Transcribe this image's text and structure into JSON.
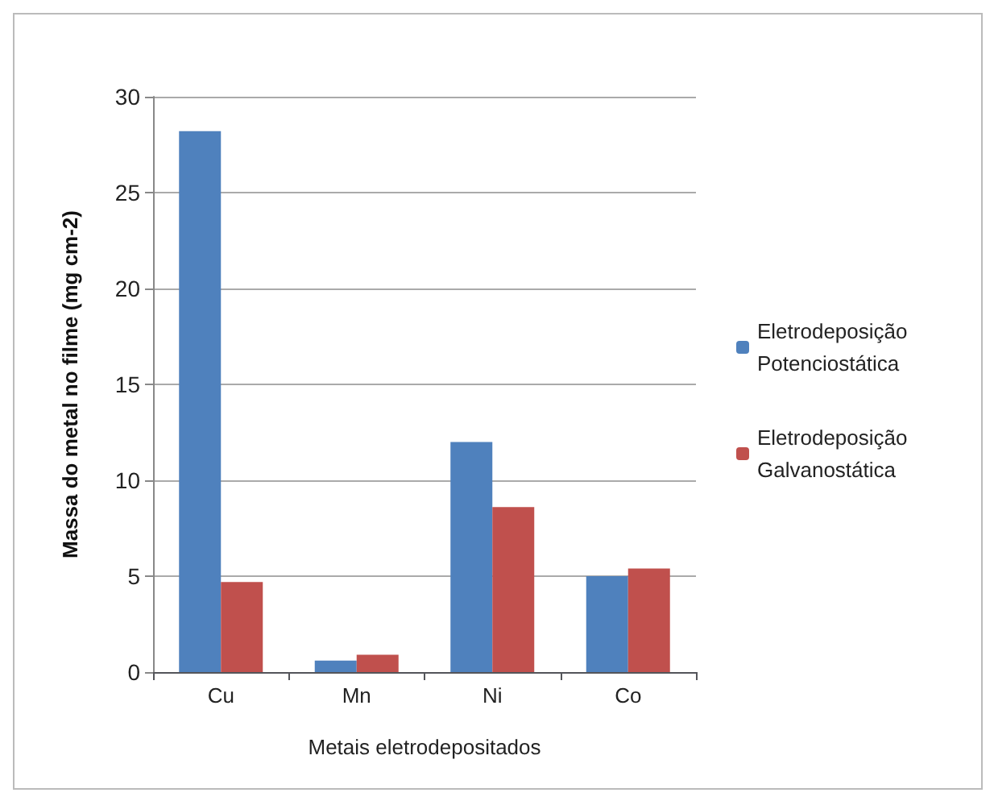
{
  "chart_data": {
    "type": "bar",
    "xlabel": "Metais eletrodepositados",
    "ylabel": "Massa do metal no filme (mg cm-2)",
    "categories": [
      "Cu",
      "Mn",
      "Ni",
      "Co"
    ],
    "series": [
      {
        "name": "Eletrodeposição Potenciostática",
        "color": "#4f81bd",
        "values": [
          28.2,
          0.6,
          12.0,
          5.0
        ]
      },
      {
        "name": "Eletrodeposição Galvanostática",
        "color": "#c0504d",
        "values": [
          4.7,
          0.9,
          8.6,
          5.4
        ]
      }
    ],
    "ylim": [
      0,
      30
    ],
    "yticks": [
      0,
      5,
      10,
      15,
      20,
      25,
      30
    ],
    "grid": "y",
    "legend": "right"
  }
}
